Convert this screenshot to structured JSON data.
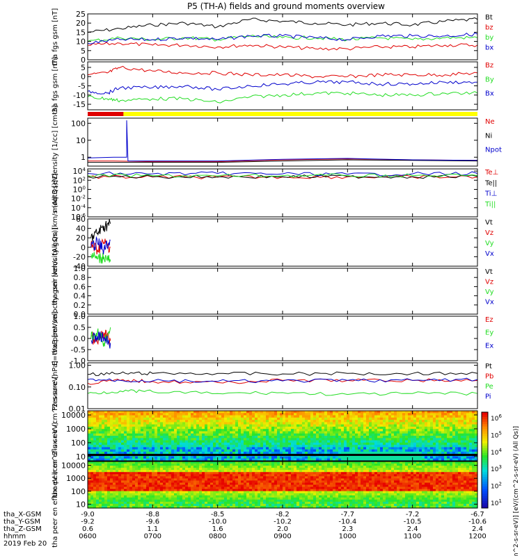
{
  "title": "P5 (TH-A) fields and ground moments overview",
  "colors": {
    "black": "#000000",
    "red": "#e00000",
    "green": "#22dd22",
    "blue": "#0000cc",
    "yellow": "#ffff00"
  },
  "time": {
    "start_hour": 6,
    "end_hour": 12
  },
  "bottom_axis": {
    "row_labels": [
      "tha_X-GSM",
      "tha_Y-GSM",
      "tha_Z-GSM",
      "hhmm",
      "2019 Feb 20"
    ],
    "ticks": [
      {
        "hour": 6,
        "x": "-9.0",
        "y": "-9.2",
        "z": "0.6",
        "hhmm": "0600"
      },
      {
        "hour": 7,
        "x": "-8.8",
        "y": "-9.6",
        "z": "1.1",
        "hhmm": "0700"
      },
      {
        "hour": 8,
        "x": "-8.5",
        "y": "-10.0",
        "z": "1.6",
        "hhmm": "0800"
      },
      {
        "hour": 9,
        "x": "-8.2",
        "y": "-10.2",
        "z": "2.0",
        "hhmm": "0900"
      },
      {
        "hour": 10,
        "x": "-7.7",
        "y": "-10.4",
        "z": "2.3",
        "hhmm": "1000"
      },
      {
        "hour": 11,
        "x": "-7.2",
        "y": "-10.5",
        "z": "2.4",
        "hhmm": "1100"
      },
      {
        "hour": 12,
        "x": "-6.7",
        "y": "-10.6",
        "z": "2.4",
        "hhmm": "1200"
      }
    ]
  },
  "chart_data": [
    {
      "type": "line",
      "id": "fgs_total",
      "ylabel": "tha fgs gsm [nT]",
      "ylim": [
        0,
        25
      ],
      "scale": "linear",
      "yticks": [
        "0",
        "5",
        "10",
        "15",
        "20",
        "25"
      ],
      "series": [
        {
          "name": "Bt",
          "color": "black",
          "x": [
            6,
            6.5,
            7,
            7.5,
            8,
            8.5,
            9,
            9.5,
            10,
            10.5,
            11,
            11.5,
            12
          ],
          "y": [
            15,
            17,
            19,
            20,
            18,
            22,
            21,
            20,
            19,
            20,
            19,
            21,
            22
          ]
        },
        {
          "name": "bz",
          "color": "red",
          "x": [
            6,
            6.5,
            7,
            7.5,
            8,
            8.5,
            9,
            9.5,
            10,
            10.5,
            11,
            11.5,
            12
          ],
          "y": [
            8,
            9,
            8,
            8,
            7,
            8,
            7,
            6,
            6,
            7,
            7,
            8,
            8
          ]
        },
        {
          "name": "by",
          "color": "green",
          "x": [
            6,
            6.5,
            7,
            7.5,
            8,
            8.5,
            9,
            9.5,
            10,
            10.5,
            11,
            11.5,
            12
          ],
          "y": [
            10,
            12,
            11,
            12,
            11,
            13,
            12,
            12,
            11,
            12,
            11,
            12,
            12
          ]
        },
        {
          "name": "bx",
          "color": "blue",
          "x": [
            6,
            6.5,
            7,
            7.5,
            8,
            8.5,
            9,
            9.5,
            10,
            10.5,
            11,
            11.5,
            12
          ],
          "y": [
            9,
            11,
            11,
            12,
            11,
            13,
            13,
            12,
            11,
            13,
            13,
            13,
            14
          ]
        }
      ]
    },
    {
      "type": "line",
      "id": "fgs_comp",
      "ylabel": "tha fgs gsm [nT]",
      "ylim": [
        -18,
        8
      ],
      "scale": "linear",
      "yticks": [
        "-15",
        "-10",
        "-5",
        "0",
        "5"
      ],
      "series": [
        {
          "name": "Bz",
          "color": "red",
          "x": [
            6,
            6.3,
            6.5,
            7,
            7.5,
            8,
            8.5,
            9,
            9.5,
            10,
            10.5,
            11,
            11.5,
            12
          ],
          "y": [
            1,
            2,
            5,
            3,
            2,
            2,
            1,
            1,
            0,
            0,
            1,
            1,
            1,
            2
          ]
        },
        {
          "name": "By",
          "color": "green",
          "x": [
            6,
            6.3,
            6.5,
            7,
            7.5,
            8,
            8.5,
            9,
            9.5,
            10,
            10.5,
            11,
            11.5,
            12
          ],
          "y": [
            -11,
            -12,
            -13,
            -12,
            -12,
            -14,
            -11,
            -10,
            -9,
            -9,
            -10,
            -10,
            -9,
            -9
          ]
        },
        {
          "name": "Bx",
          "color": "blue",
          "x": [
            6,
            6.3,
            6.5,
            7,
            7.5,
            8,
            8.5,
            9,
            9.5,
            10,
            10.5,
            11,
            11.5,
            12
          ],
          "y": [
            -8,
            -9,
            -6,
            -6,
            -5,
            -7,
            -5,
            -4,
            -3,
            -3,
            -4,
            -4,
            -3,
            -3
          ]
        }
      ]
    },
    {
      "type": "line",
      "id": "density",
      "ylabel": "Density [1/cc] [cm-3]",
      "ylim": [
        0.3,
        200
      ],
      "scale": "log",
      "yticks": [
        "1",
        "10",
        "100"
      ],
      "series": [
        {
          "name": "Ne",
          "color": "red",
          "x": [
            6,
            6.4,
            7,
            8,
            9,
            10,
            11,
            12
          ],
          "y": [
            0.6,
            0.6,
            0.55,
            0.55,
            0.7,
            0.8,
            0.7,
            0.65
          ]
        },
        {
          "name": "Ni",
          "color": "black",
          "x": [
            6,
            6.4,
            7,
            8,
            9,
            10,
            11,
            12
          ],
          "y": [
            0.5,
            0.5,
            0.5,
            0.5,
            0.6,
            0.7,
            0.65,
            0.6
          ]
        },
        {
          "name": "Npot",
          "color": "blue",
          "x": [
            6,
            6.4,
            6.6,
            6.6,
            6.62,
            7,
            8,
            9,
            10,
            11,
            12
          ],
          "y": [
            0.9,
            1.0,
            1.0,
            150,
            0.6,
            0.6,
            0.6,
            0.75,
            0.85,
            0.7,
            0.65
          ]
        }
      ]
    },
    {
      "type": "line",
      "id": "temp",
      "ylabel": "moqt3 [eV]",
      "ylim": [
        1e-06,
        30000
      ],
      "scale": "log",
      "yticks": [
        "10^-6",
        "10^-4",
        "10^-2",
        "10^0",
        "10^2",
        "10^4"
      ],
      "series": [
        {
          "name": "Te⊥",
          "color": "red",
          "x": [
            6,
            7,
            8,
            9,
            10,
            11,
            12
          ],
          "y": [
            500,
            500,
            450,
            500,
            550,
            500,
            500
          ]
        },
        {
          "name": "Te||",
          "color": "black",
          "x": [
            6,
            7,
            8,
            9,
            10,
            11,
            12
          ],
          "y": [
            600,
            600,
            550,
            600,
            650,
            600,
            600
          ]
        },
        {
          "name": "Ti⊥",
          "color": "blue",
          "x": [
            6,
            7,
            8,
            9,
            10,
            11,
            12
          ],
          "y": [
            3000,
            2500,
            3000,
            2500,
            2000,
            2500,
            3000
          ]
        },
        {
          "name": "Ti||",
          "color": "green",
          "x": [
            6,
            7,
            8,
            9,
            10,
            11,
            12
          ],
          "y": [
            1000,
            1000,
            900,
            1000,
            1100,
            1000,
            1000
          ]
        }
      ]
    },
    {
      "type": "line",
      "id": "peir_vel",
      "ylabel": "tha peir velocity gsm [km/s (All Qs)]",
      "ylim": [
        -40,
        60
      ],
      "scale": "linear",
      "yticks": [
        "-40",
        "-20",
        "0",
        "20",
        "40",
        "60"
      ],
      "series": [
        {
          "name": "Vt",
          "color": "black",
          "x": [
            6.05,
            6.15,
            6.25,
            6.35
          ],
          "y": [
            20,
            30,
            45,
            50
          ]
        },
        {
          "name": "Vz",
          "color": "red",
          "x": [
            6.05,
            6.15,
            6.25,
            6.35
          ],
          "y": [
            5,
            -5,
            10,
            0
          ]
        },
        {
          "name": "Vy",
          "color": "green",
          "x": [
            6.05,
            6.15,
            6.25,
            6.35
          ],
          "y": [
            -15,
            -25,
            -20,
            -30
          ]
        },
        {
          "name": "Vx",
          "color": "blue",
          "x": [
            6.05,
            6.15,
            6.25,
            6.35
          ],
          "y": [
            0,
            10,
            -5,
            15
          ]
        }
      ]
    },
    {
      "type": "line",
      "id": "peer_vel",
      "ylabel": "tha peer velocity gsm [km/s (All Qs)]",
      "ylim": [
        0,
        1
      ],
      "scale": "linear",
      "yticks": [
        "0.0",
        "0.2",
        "0.4",
        "0.6",
        "0.8",
        "1.0"
      ],
      "series": [
        {
          "name": "Vt",
          "color": "black",
          "x": [],
          "y": []
        },
        {
          "name": "Vz",
          "color": "red",
          "x": [],
          "y": []
        },
        {
          "name": "Vy",
          "color": "green",
          "x": [],
          "y": []
        },
        {
          "name": "Vx",
          "color": "blue",
          "x": [],
          "y": []
        }
      ]
    },
    {
      "type": "line",
      "id": "efield",
      "ylabel": "E=-VxB [mV/m]",
      "ylim": [
        -1,
        1
      ],
      "scale": "linear",
      "yticks": [
        "-1.0",
        "-0.5",
        "0.0",
        "0.5",
        "1.0"
      ],
      "series": [
        {
          "name": "Ez",
          "color": "red",
          "x": [
            6.05,
            6.15,
            6.25,
            6.35
          ],
          "y": [
            0.1,
            -0.2,
            0.2,
            -0.1
          ]
        },
        {
          "name": "Ey",
          "color": "green",
          "x": [
            6.05,
            6.15,
            6.25,
            6.35
          ],
          "y": [
            0.0,
            0.3,
            -0.2,
            0.5
          ]
        },
        {
          "name": "Ex",
          "color": "blue",
          "x": [
            6.05,
            6.15,
            6.25,
            6.35
          ],
          "y": [
            -0.1,
            0.1,
            0.0,
            -0.2
          ]
        }
      ]
    },
    {
      "type": "line",
      "id": "pressure",
      "ylabel": "Pressure [nPa]",
      "ylim": [
        0.01,
        1.3
      ],
      "scale": "log",
      "yticks": [
        "0.01",
        "0.10",
        "1.00"
      ],
      "series": [
        {
          "name": "Pt",
          "color": "black",
          "x": [
            6,
            6.5,
            7,
            8,
            9,
            10,
            11,
            12
          ],
          "y": [
            0.38,
            0.42,
            0.42,
            0.42,
            0.4,
            0.42,
            0.42,
            0.42
          ]
        },
        {
          "name": "Pb",
          "color": "red",
          "x": [
            6,
            6.5,
            7,
            8,
            9,
            10,
            11,
            12
          ],
          "y": [
            0.15,
            0.2,
            0.18,
            0.16,
            0.2,
            0.2,
            0.2,
            0.2
          ]
        },
        {
          "name": "Pe",
          "color": "green",
          "x": [
            6,
            6.5,
            7,
            8,
            9,
            10,
            11,
            12
          ],
          "y": [
            0.05,
            0.065,
            0.06,
            0.05,
            0.055,
            0.045,
            0.05,
            0.05
          ]
        },
        {
          "name": "Pi",
          "color": "blue",
          "x": [
            6,
            6.5,
            7,
            8,
            9,
            10,
            11,
            12
          ],
          "y": [
            0.22,
            0.2,
            0.19,
            0.18,
            0.19,
            0.2,
            0.2,
            0.22
          ]
        }
      ]
    },
    {
      "type": "heatmap",
      "id": "peir_spec",
      "ylabel": "tha peir en eflux eV (cm^2-s-sr-eV)",
      "ylim": [
        5,
        20000
      ],
      "scale": "log",
      "yticks": [
        "10",
        "100",
        "1000",
        "10000"
      ]
    },
    {
      "type": "heatmap",
      "id": "peer_spec",
      "ylabel": "tha peer en eflux eV (cm^2-s-sr-eV)",
      "ylim": [
        5,
        20000
      ],
      "scale": "log",
      "yticks": [
        "10",
        "100",
        "1000",
        "10000"
      ]
    }
  ],
  "colorbar_ticks": [
    "10^6",
    "10^5",
    "10^4",
    "10^3",
    "10^2",
    "10^1"
  ],
  "colorbar_label": "[eV/(cm^2-s-sr-eV)] [eV/(cm^2-s-sr-eV) (All Qs)]"
}
